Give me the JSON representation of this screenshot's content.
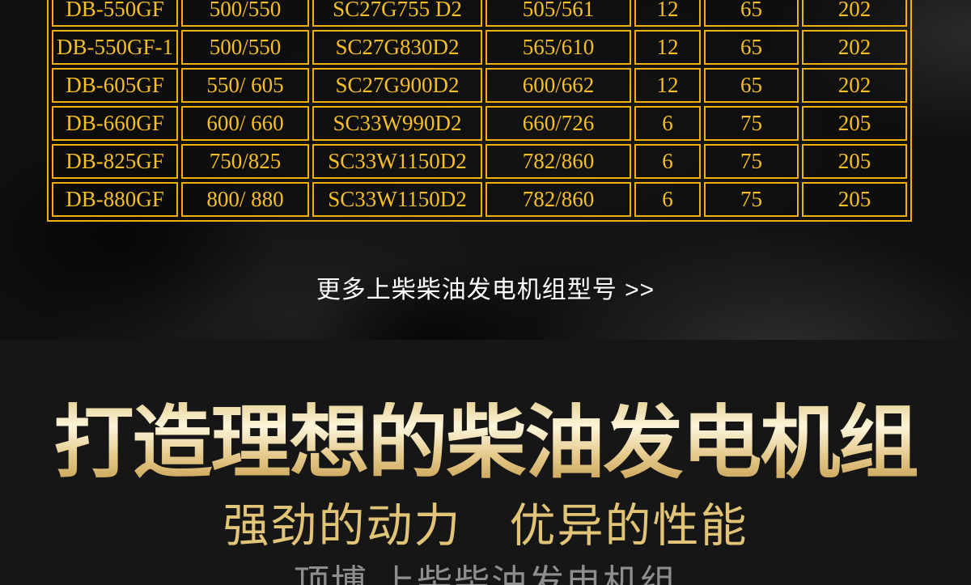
{
  "hero": {
    "more_link": "更多上柴柴油发电机组型号 >>"
  },
  "promo": {
    "heading": "打造理想的柴油发电机组",
    "subheading": "强劲的动力　优异的性能",
    "brand_line": "顶博 上柴柴油发电机组"
  },
  "spec_table": {
    "rows": [
      [
        "DB-550GF",
        "500/550",
        "SC27G755 D2",
        "505/561",
        "12",
        "65",
        "202"
      ],
      [
        "DB-550GF-1",
        "500/550",
        "SC27G830D2",
        "565/610",
        "12",
        "65",
        "202"
      ],
      [
        "DB-605GF",
        "550/ 605",
        "SC27G900D2",
        "600/662",
        "12",
        "65",
        "202"
      ],
      [
        "DB-660GF",
        "600/ 660",
        "SC33W990D2",
        "660/726",
        "6",
        "75",
        "205"
      ],
      [
        "DB-825GF",
        "750/825",
        "SC33W1150D2",
        "782/860",
        "6",
        "75",
        "205"
      ],
      [
        "DB-880GF",
        "800/ 880",
        "SC33W1150D2",
        "782/860",
        "6",
        "75",
        "205"
      ]
    ]
  },
  "colors": {
    "gold_border": "#f2b00e",
    "gold_text": "#f6bf24",
    "heading_gradient": [
      "#e9d49c",
      "#fcf5da",
      "#e6cb8f",
      "#c9a254"
    ],
    "subheading_text": "#e2c478",
    "brand_text": "#8e8e8e",
    "link_text": "#ffffff",
    "promo_background": "#161616"
  }
}
